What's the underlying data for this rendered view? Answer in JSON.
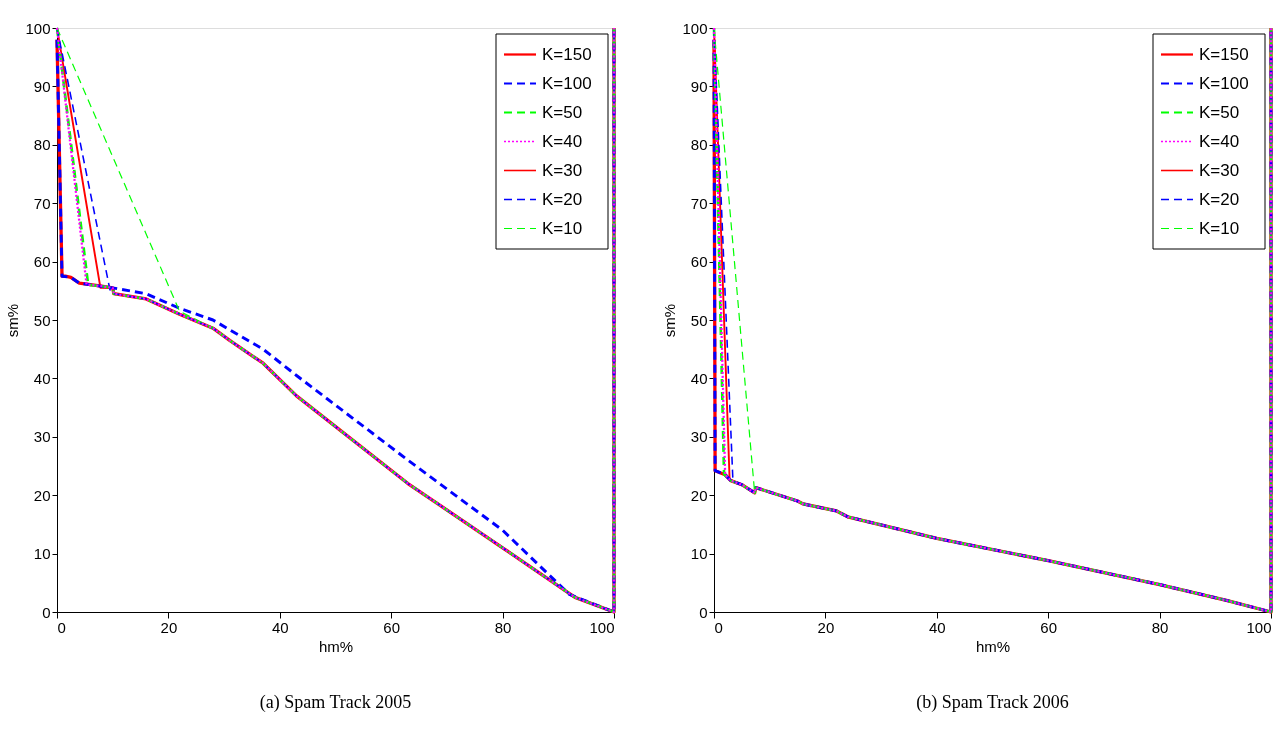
{
  "chart_data": [
    {
      "type": "line",
      "title": "(a)  Spam Track 2005",
      "xlabel": "hm%",
      "ylabel": "sm%",
      "xlim": [
        0,
        100
      ],
      "ylim": [
        0,
        100
      ],
      "xticks": [
        0,
        20,
        40,
        60,
        80,
        100
      ],
      "yticks": [
        0,
        10,
        20,
        30,
        40,
        50,
        60,
        70,
        80,
        90,
        100
      ],
      "grid": false,
      "legend": "top right",
      "marker": "none",
      "series": [
        {
          "name": "K=150",
          "color": "#ff0000",
          "line_style": "solid",
          "x": [
            0,
            0.9,
            1.5,
            2.5,
            4,
            8,
            10,
            10.2,
            16,
            22,
            28,
            31,
            37,
            43,
            63,
            80,
            93,
            100,
            100
          ],
          "values": [
            98,
            57.5,
            57.5,
            57.3,
            56.3,
            55.8,
            55.5,
            54.5,
            53.6,
            51,
            48.6,
            46.5,
            42.6,
            37,
            22,
            11,
            2.5,
            0,
            100
          ]
        },
        {
          "name": "K=100",
          "color": "#0000ff",
          "line_style": "dashed",
          "x": [
            0,
            0.9,
            2.5,
            4,
            10,
            16,
            22,
            28,
            37,
            43,
            63,
            80,
            92,
            100,
            100
          ],
          "values": [
            98,
            57.5,
            57.3,
            56.3,
            55.5,
            54.5,
            52,
            50,
            45,
            40.5,
            26,
            14,
            3,
            0,
            100
          ]
        },
        {
          "name": "K=50",
          "color": "#00ff00",
          "line_style": "dashed",
          "x": [
            0,
            5.6,
            8,
            10,
            10.2,
            16,
            22,
            28,
            31,
            37,
            43,
            63,
            80,
            93,
            100,
            100
          ],
          "values": [
            100,
            56,
            55.8,
            55.5,
            54.5,
            53.6,
            51,
            48.6,
            46.5,
            42.6,
            37,
            22,
            11,
            2.5,
            0,
            100
          ]
        },
        {
          "name": "K=40",
          "color": "#ff00ff",
          "line_style": "dotted",
          "x": [
            0,
            5.3,
            8,
            10,
            10.2,
            16,
            22,
            28,
            31,
            37,
            43,
            63,
            80,
            93,
            100,
            100
          ],
          "values": [
            100,
            56.1,
            55.8,
            55.5,
            54.5,
            53.6,
            51,
            48.6,
            46.5,
            42.6,
            37,
            22,
            11,
            2.5,
            0,
            100
          ]
        },
        {
          "name": "K=30",
          "color": "#ff0000",
          "line_style": "solid",
          "x": [
            0,
            7.8,
            10,
            10.2,
            16,
            22,
            28,
            31,
            37,
            43,
            63,
            80,
            93,
            100,
            100
          ],
          "values": [
            100,
            55.5,
            55.5,
            54.5,
            53.6,
            51,
            48.6,
            46.5,
            42.6,
            37,
            22,
            11,
            2.5,
            0,
            100
          ]
        },
        {
          "name": "K=20",
          "color": "#0000ff",
          "line_style": "dashed",
          "x": [
            0,
            9.5,
            10.2,
            16,
            22,
            28,
            31,
            37,
            43,
            63,
            80,
            93,
            100,
            100
          ],
          "values": [
            100,
            55.2,
            54.5,
            53.6,
            51,
            48.6,
            46.5,
            42.6,
            37,
            22,
            11,
            2.5,
            0,
            100
          ]
        },
        {
          "name": "K=10",
          "color": "#00ff00",
          "line_style": "dashed",
          "x": [
            0,
            22,
            28,
            31,
            37,
            43,
            63,
            80,
            93,
            100,
            100
          ],
          "values": [
            100,
            51.5,
            48.6,
            46.5,
            42.6,
            37,
            22,
            11,
            2.5,
            0,
            100
          ]
        }
      ]
    },
    {
      "type": "line",
      "title": "(b)  Spam Track 2006",
      "xlabel": "hm%",
      "ylabel": "sm%",
      "xlim": [
        0,
        100
      ],
      "ylim": [
        0,
        100
      ],
      "xticks": [
        0,
        20,
        40,
        60,
        80,
        100
      ],
      "yticks": [
        0,
        10,
        20,
        30,
        40,
        50,
        60,
        70,
        80,
        90,
        100
      ],
      "grid": false,
      "legend": "top right",
      "marker": "none",
      "series": [
        {
          "name": "K=150",
          "color": "#ff0000",
          "line_style": "solid",
          "x": [
            0,
            0.2,
            2,
            3,
            5,
            7.3,
            7.5,
            15,
            16,
            22,
            24,
            40,
            60,
            80,
            92,
            100,
            100
          ],
          "values": [
            98,
            24.2,
            23.5,
            22.5,
            21.8,
            20.4,
            21.3,
            19,
            18.5,
            17.3,
            16.3,
            12.6,
            8.8,
            4.7,
            2,
            0,
            100
          ]
        },
        {
          "name": "K=100",
          "color": "#0000ff",
          "line_style": "dashed",
          "x": [
            0,
            0.2,
            2,
            3,
            5,
            7.3,
            7.5,
            15,
            16,
            22,
            24,
            40,
            60,
            80,
            92,
            100,
            100
          ],
          "values": [
            98,
            24.2,
            23.5,
            22.5,
            21.8,
            20.4,
            21.3,
            19,
            18.5,
            17.3,
            16.3,
            12.6,
            8.8,
            4.7,
            2,
            0,
            100
          ]
        },
        {
          "name": "K=50",
          "color": "#00ff00",
          "line_style": "dashed",
          "x": [
            0,
            1.8,
            3,
            5,
            7.3,
            7.5,
            15,
            16,
            22,
            24,
            40,
            60,
            80,
            92,
            100,
            100
          ],
          "values": [
            100,
            23.6,
            22.5,
            21.8,
            20.4,
            21.3,
            19,
            18.5,
            17.3,
            16.3,
            12.6,
            8.8,
            4.7,
            2,
            0,
            100
          ]
        },
        {
          "name": "K=40",
          "color": "#ff00ff",
          "line_style": "dotted",
          "x": [
            0,
            2,
            3,
            5,
            7.3,
            7.5,
            15,
            16,
            22,
            24,
            40,
            60,
            80,
            92,
            100,
            100
          ],
          "values": [
            100,
            23.5,
            22.5,
            21.8,
            20.4,
            21.3,
            19,
            18.5,
            17.3,
            16.3,
            12.6,
            8.8,
            4.7,
            2,
            0,
            100
          ]
        },
        {
          "name": "K=30",
          "color": "#ff0000",
          "line_style": "solid",
          "x": [
            0,
            2.8,
            5,
            7.3,
            7.5,
            15,
            16,
            22,
            24,
            40,
            60,
            80,
            92,
            100,
            100
          ],
          "values": [
            100,
            22.7,
            21.8,
            20.4,
            21.3,
            19,
            18.5,
            17.3,
            16.3,
            12.6,
            8.8,
            4.7,
            2,
            0,
            100
          ]
        },
        {
          "name": "K=20",
          "color": "#0000ff",
          "line_style": "dashed",
          "x": [
            0,
            3.4,
            5,
            7.3,
            7.5,
            15,
            16,
            22,
            24,
            40,
            60,
            80,
            92,
            100,
            100
          ],
          "values": [
            100,
            22.4,
            21.8,
            20.4,
            21.3,
            19,
            18.5,
            17.3,
            16.3,
            12.6,
            8.8,
            4.7,
            2,
            0,
            100
          ]
        },
        {
          "name": "K=10",
          "color": "#00ff00",
          "line_style": "dashed",
          "x": [
            0,
            7.3,
            7.5,
            15,
            16,
            22,
            24,
            40,
            60,
            80,
            92,
            100,
            100
          ],
          "values": [
            100,
            20.4,
            21.3,
            19,
            18.5,
            17.3,
            16.3,
            12.6,
            8.8,
            4.7,
            2,
            0,
            100
          ]
        }
      ]
    }
  ]
}
